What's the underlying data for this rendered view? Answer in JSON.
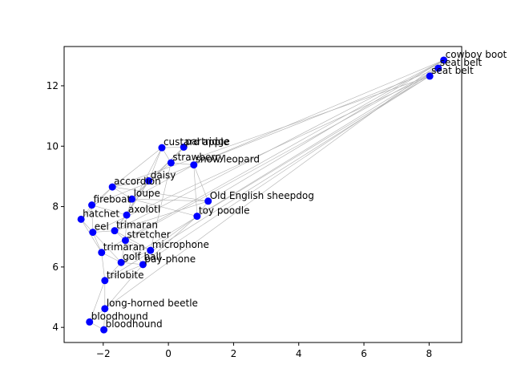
{
  "chart_data": {
    "type": "scatter",
    "title": "",
    "xlabel": "",
    "ylabel": "",
    "xlim": [
      -3.2,
      9.0
    ],
    "ylim": [
      3.5,
      13.3
    ],
    "xticks": [
      -2,
      0,
      2,
      4,
      6,
      8
    ],
    "yticks": [
      4,
      6,
      8,
      10,
      12
    ],
    "grid": false,
    "colors": {
      "point": "#0000ff",
      "edge": "#b0b0b0"
    },
    "points": [
      {
        "label": "cowboy boot",
        "x": 8.45,
        "y": 12.85
      },
      {
        "label": "seat belt",
        "x": 8.28,
        "y": 12.58
      },
      {
        "label": "seat belt",
        "x": 8.02,
        "y": 12.32
      },
      {
        "label": "custard apple",
        "x": -0.2,
        "y": 9.95
      },
      {
        "label": "partridge",
        "x": 0.47,
        "y": 9.97
      },
      {
        "label": "strawberry",
        "x": 0.08,
        "y": 9.45
      },
      {
        "label": "snow leopard",
        "x": 0.78,
        "y": 9.38
      },
      {
        "label": "daisy",
        "x": -0.6,
        "y": 8.85
      },
      {
        "label": "accordion",
        "x": -1.72,
        "y": 8.65
      },
      {
        "label": "loupe",
        "x": -1.12,
        "y": 8.25
      },
      {
        "label": "fireboat",
        "x": -2.35,
        "y": 8.05
      },
      {
        "label": "Old English sheepdog",
        "x": 1.22,
        "y": 8.18
      },
      {
        "label": "axolotl",
        "x": -1.28,
        "y": 7.72
      },
      {
        "label": "hatchet",
        "x": -2.68,
        "y": 7.58
      },
      {
        "label": "toy poodle",
        "x": 0.88,
        "y": 7.68
      },
      {
        "label": "trimaran",
        "x": -1.65,
        "y": 7.2
      },
      {
        "label": "eel",
        "x": -2.32,
        "y": 7.15
      },
      {
        "label": "stretcher",
        "x": -1.32,
        "y": 6.88
      },
      {
        "label": "microphone",
        "x": -0.55,
        "y": 6.55
      },
      {
        "label": "trimaran",
        "x": -2.05,
        "y": 6.48
      },
      {
        "label": "golf ball",
        "x": -1.45,
        "y": 6.15
      },
      {
        "label": "pay-phone",
        "x": -0.78,
        "y": 6.08
      },
      {
        "label": "trilobite",
        "x": -1.95,
        "y": 5.55
      },
      {
        "label": "long-horned beetle",
        "x": -1.95,
        "y": 4.62
      },
      {
        "label": "bloodhound",
        "x": -2.42,
        "y": 4.18
      },
      {
        "label": "bloodhound",
        "x": -1.98,
        "y": 3.92
      }
    ],
    "edges": [
      [
        0,
        1
      ],
      [
        0,
        2
      ],
      [
        1,
        2
      ],
      [
        0,
        6
      ],
      [
        0,
        11
      ],
      [
        0,
        15
      ],
      [
        0,
        19
      ],
      [
        0,
        23
      ],
      [
        1,
        10
      ],
      [
        1,
        14
      ],
      [
        1,
        21
      ],
      [
        1,
        17
      ],
      [
        2,
        8
      ],
      [
        2,
        16
      ],
      [
        2,
        20
      ],
      [
        2,
        22
      ],
      [
        3,
        4
      ],
      [
        3,
        5
      ],
      [
        3,
        7
      ],
      [
        3,
        8
      ],
      [
        3,
        12
      ],
      [
        4,
        5
      ],
      [
        4,
        7
      ],
      [
        4,
        9
      ],
      [
        5,
        6
      ],
      [
        5,
        7
      ],
      [
        5,
        18
      ],
      [
        6,
        11
      ],
      [
        6,
        14
      ],
      [
        6,
        9
      ],
      [
        7,
        9
      ],
      [
        7,
        8
      ],
      [
        7,
        12
      ],
      [
        7,
        15
      ],
      [
        8,
        10
      ],
      [
        8,
        9
      ],
      [
        8,
        13
      ],
      [
        8,
        11
      ],
      [
        9,
        11
      ],
      [
        9,
        12
      ],
      [
        9,
        14
      ],
      [
        10,
        13
      ],
      [
        10,
        12
      ],
      [
        10,
        16
      ],
      [
        11,
        14
      ],
      [
        11,
        15
      ],
      [
        12,
        15
      ],
      [
        12,
        17
      ],
      [
        13,
        16
      ],
      [
        13,
        19
      ],
      [
        14,
        18
      ],
      [
        14,
        21
      ],
      [
        15,
        16
      ],
      [
        15,
        17
      ],
      [
        15,
        18
      ],
      [
        16,
        19
      ],
      [
        16,
        20
      ],
      [
        17,
        18
      ],
      [
        17,
        20
      ],
      [
        17,
        21
      ],
      [
        18,
        21
      ],
      [
        18,
        20
      ],
      [
        19,
        20
      ],
      [
        19,
        22
      ],
      [
        20,
        21
      ],
      [
        20,
        22
      ],
      [
        21,
        22
      ],
      [
        21,
        23
      ],
      [
        22,
        23
      ],
      [
        22,
        24
      ],
      [
        23,
        24
      ],
      [
        23,
        25
      ],
      [
        24,
        25
      ]
    ]
  }
}
